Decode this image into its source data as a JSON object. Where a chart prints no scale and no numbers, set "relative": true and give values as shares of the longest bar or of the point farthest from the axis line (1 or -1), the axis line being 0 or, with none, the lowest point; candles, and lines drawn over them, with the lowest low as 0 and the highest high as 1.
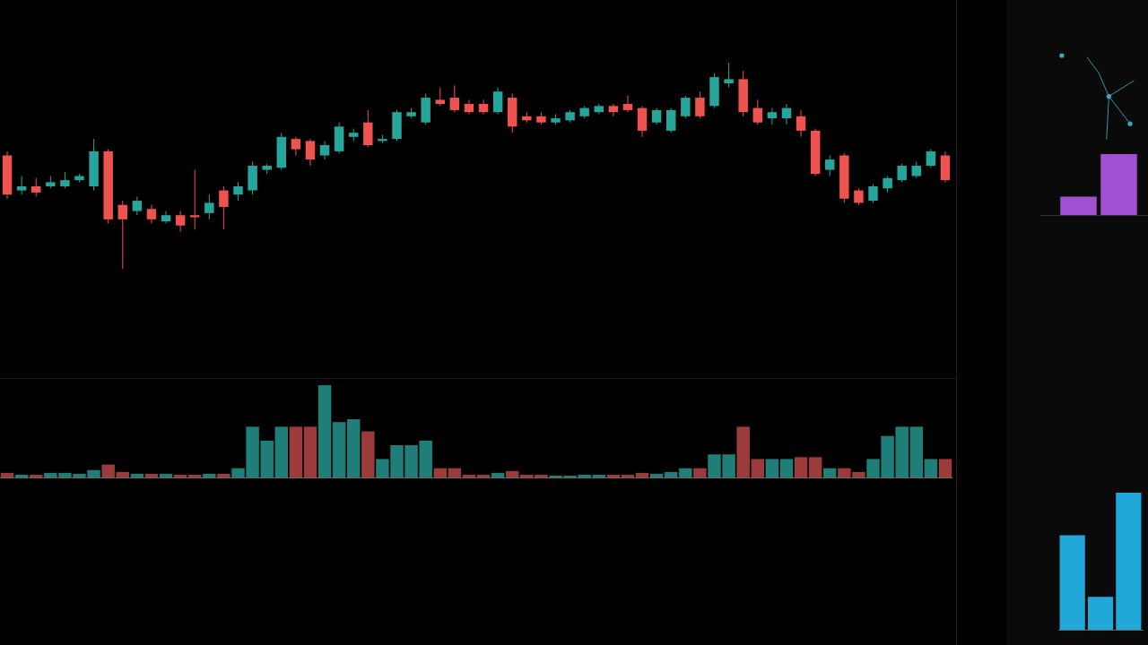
{
  "chart_data": [
    {
      "type": "candlestick",
      "relative": true,
      "categories": [
        null,
        null,
        null,
        null,
        null,
        null,
        null,
        null,
        null,
        null,
        null,
        null,
        null,
        null,
        null,
        null,
        null,
        null,
        null,
        null,
        null,
        null,
        null,
        null,
        null,
        null,
        null,
        null,
        null,
        null,
        null,
        null,
        null,
        null,
        null,
        null,
        null,
        null,
        null,
        null,
        null,
        null,
        null,
        null,
        null,
        null,
        null,
        null,
        null,
        null,
        null,
        null,
        null,
        null,
        null,
        null,
        null,
        null,
        null,
        null,
        null,
        null,
        null,
        null,
        null,
        null
      ],
      "ohlc": [
        [
          0.55,
          0.57,
          0.34,
          0.36
        ],
        [
          0.38,
          0.45,
          0.36,
          0.4
        ],
        [
          0.4,
          0.44,
          0.35,
          0.37
        ],
        [
          0.4,
          0.45,
          0.39,
          0.42
        ],
        [
          0.4,
          0.47,
          0.39,
          0.43
        ],
        [
          0.43,
          0.46,
          0.42,
          0.45
        ],
        [
          0.4,
          0.63,
          0.38,
          0.57
        ],
        [
          0.57,
          0.58,
          0.22,
          0.24
        ],
        [
          0.31,
          0.33,
          0,
          0.24
        ],
        [
          0.28,
          0.35,
          0.26,
          0.33
        ],
        [
          0.29,
          0.31,
          0.22,
          0.24
        ],
        [
          0.23,
          0.28,
          0.22,
          0.26
        ],
        [
          0.26,
          0.28,
          0.18,
          0.21
        ],
        [
          0.26,
          0.48,
          0.19,
          0.25
        ],
        [
          0.27,
          0.36,
          0.24,
          0.32
        ],
        [
          0.38,
          0.4,
          0.19,
          0.3
        ],
        [
          0.36,
          0.42,
          0.33,
          0.4
        ],
        [
          0.38,
          0.52,
          0.36,
          0.5
        ],
        [
          0.48,
          0.51,
          0.46,
          0.5
        ],
        [
          0.49,
          0.66,
          0.48,
          0.64
        ],
        [
          0.63,
          0.64,
          0.55,
          0.58
        ],
        [
          0.62,
          0.63,
          0.5,
          0.53
        ],
        [
          0.55,
          0.62,
          0.53,
          0.6
        ],
        [
          0.57,
          0.71,
          0.56,
          0.69
        ],
        [
          0.64,
          0.68,
          0.62,
          0.66
        ],
        [
          0.71,
          0.77,
          0.59,
          0.6
        ],
        [
          0.62,
          0.65,
          0.61,
          0.63
        ],
        [
          0.63,
          0.77,
          0.62,
          0.76
        ],
        [
          0.74,
          0.78,
          0.73,
          0.76
        ],
        [
          0.71,
          0.85,
          0.7,
          0.83
        ],
        [
          0.82,
          0.88,
          0.79,
          0.8
        ],
        [
          0.83,
          0.89,
          0.76,
          0.77
        ],
        [
          0.8,
          0.82,
          0.75,
          0.76
        ],
        [
          0.8,
          0.82,
          0.75,
          0.76
        ],
        [
          0.76,
          0.88,
          0.75,
          0.86
        ],
        [
          0.83,
          0.85,
          0.66,
          0.69
        ],
        [
          0.74,
          0.76,
          0.71,
          0.72
        ],
        [
          0.74,
          0.76,
          0.7,
          0.71
        ],
        [
          0.71,
          0.75,
          0.7,
          0.73
        ],
        [
          0.72,
          0.77,
          0.71,
          0.76
        ],
        [
          0.74,
          0.79,
          0.73,
          0.78
        ],
        [
          0.76,
          0.8,
          0.75,
          0.79
        ],
        [
          0.79,
          0.8,
          0.74,
          0.76
        ],
        [
          0.8,
          0.84,
          0.76,
          0.77
        ],
        [
          0.78,
          0.79,
          0.64,
          0.67
        ],
        [
          0.71,
          0.78,
          0.7,
          0.77
        ],
        [
          0.67,
          0.78,
          0.66,
          0.77
        ],
        [
          0.74,
          0.84,
          0.73,
          0.83
        ],
        [
          0.83,
          0.86,
          0.73,
          0.74
        ],
        [
          0.79,
          0.95,
          0.78,
          0.93
        ],
        [
          0.9,
          1,
          0.88,
          0.92
        ],
        [
          0.92,
          0.96,
          0.74,
          0.76
        ],
        [
          0.78,
          0.82,
          0.7,
          0.71
        ],
        [
          0.73,
          0.78,
          0.7,
          0.76
        ],
        [
          0.73,
          0.8,
          0.7,
          0.78
        ],
        [
          0.74,
          0.77,
          0.64,
          0.67
        ],
        [
          0.67,
          0.68,
          0.45,
          0.46
        ],
        [
          0.48,
          0.55,
          0.45,
          0.53
        ],
        [
          0.55,
          0.56,
          0.32,
          0.34
        ],
        [
          0.38,
          0.39,
          0.31,
          0.32
        ],
        [
          0.33,
          0.41,
          0.32,
          0.4
        ],
        [
          0.39,
          0.45,
          0.37,
          0.44
        ],
        [
          0.43,
          0.51,
          0.42,
          0.5
        ],
        [
          0.45,
          0.52,
          0.44,
          0.5
        ],
        [
          0.5,
          0.58,
          0.49,
          0.57
        ],
        [
          0.55,
          0.57,
          0.42,
          0.43
        ]
      ],
      "colors": [
        "#ef5350",
        "#26a69a",
        "#ef5350",
        "#26a69a",
        "#26a69a",
        "#26a69a",
        "#26a69a",
        "#ef5350",
        "#ef5350",
        "#26a69a",
        "#ef5350",
        "#26a69a",
        "#ef5350",
        "#ef5350",
        "#26a69a",
        "#ef5350",
        "#26a69a",
        "#26a69a",
        "#26a69a",
        "#26a69a",
        "#ef5350",
        "#ef5350",
        "#26a69a",
        "#26a69a",
        "#26a69a",
        "#ef5350",
        "#26a69a",
        "#26a69a",
        "#26a69a",
        "#26a69a",
        "#ef5350",
        "#ef5350",
        "#ef5350",
        "#ef5350",
        "#26a69a",
        "#ef5350",
        "#ef5350",
        "#ef5350",
        "#26a69a",
        "#26a69a",
        "#26a69a",
        "#26a69a",
        "#ef5350",
        "#ef5350",
        "#ef5350",
        "#26a69a",
        "#26a69a",
        "#26a69a",
        "#ef5350",
        "#26a69a",
        "#26a69a",
        "#ef5350",
        "#ef5350",
        "#26a69a",
        "#26a69a",
        "#ef5350",
        "#ef5350",
        "#26a69a",
        "#ef5350",
        "#ef5350",
        "#26a69a",
        "#26a69a",
        "#26a69a",
        "#26a69a",
        "#26a69a",
        "#ef5350"
      ]
    },
    {
      "type": "bar",
      "relative": true,
      "categories": [
        null,
        null,
        null,
        null,
        null,
        null,
        null,
        null,
        null,
        null,
        null,
        null,
        null,
        null,
        null,
        null,
        null,
        null,
        null,
        null,
        null,
        null,
        null,
        null,
        null,
        null,
        null,
        null,
        null,
        null,
        null,
        null,
        null,
        null,
        null,
        null,
        null,
        null,
        null,
        null,
        null,
        null,
        null,
        null,
        null,
        null,
        null,
        null,
        null,
        null,
        null,
        null,
        null,
        null,
        null,
        null,
        null,
        null,
        null,
        null,
        null,
        null,
        null,
        null,
        null,
        null
      ],
      "values": [
        0.05,
        0.03,
        0.03,
        0.05,
        0.05,
        0.04,
        0.08,
        0.14,
        0.06,
        0.04,
        0.04,
        0.04,
        0.03,
        0.03,
        0.04,
        0.04,
        0.1,
        0.55,
        0.4,
        0.55,
        0.55,
        0.55,
        1,
        0.6,
        0.63,
        0.5,
        0.2,
        0.35,
        0.35,
        0.4,
        0.1,
        0.1,
        0.03,
        0.03,
        0.05,
        0.07,
        0.03,
        0.03,
        0.02,
        0.02,
        0.03,
        0.03,
        0.03,
        0.03,
        0.05,
        0.04,
        0.06,
        0.1,
        0.1,
        0.25,
        0.25,
        0.55,
        0.2,
        0.2,
        0.2,
        0.22,
        0.22,
        0.1,
        0.1,
        0.06,
        0.2,
        0.45,
        0.55,
        0.55,
        0.2,
        0.2
      ],
      "colors": [
        "#9b3b3b",
        "#1f7f78",
        "#9b3b3b",
        "#1f7f78",
        "#1f7f78",
        "#1f7f78",
        "#1f7f78",
        "#9b3b3b",
        "#9b3b3b",
        "#1f7f78",
        "#9b3b3b",
        "#1f7f78",
        "#9b3b3b",
        "#9b3b3b",
        "#1f7f78",
        "#9b3b3b",
        "#1f7f78",
        "#1f7f78",
        "#1f7f78",
        "#1f7f78",
        "#9b3b3b",
        "#9b3b3b",
        "#1f7f78",
        "#1f7f78",
        "#1f7f78",
        "#9b3b3b",
        "#1f7f78",
        "#1f7f78",
        "#1f7f78",
        "#1f7f78",
        "#9b3b3b",
        "#9b3b3b",
        "#9b3b3b",
        "#9b3b3b",
        "#1f7f78",
        "#9b3b3b",
        "#9b3b3b",
        "#9b3b3b",
        "#1f7f78",
        "#1f7f78",
        "#1f7f78",
        "#1f7f78",
        "#9b3b3b",
        "#9b3b3b",
        "#9b3b3b",
        "#1f7f78",
        "#1f7f78",
        "#1f7f78",
        "#9b3b3b",
        "#1f7f78",
        "#1f7f78",
        "#9b3b3b",
        "#9b3b3b",
        "#1f7f78",
        "#1f7f78",
        "#9b3b3b",
        "#9b3b3b",
        "#1f7f78",
        "#9b3b3b",
        "#9b3b3b",
        "#1f7f78",
        "#1f7f78",
        "#1f7f78",
        "#1f7f78",
        "#1f7f78",
        "#9b3b3b"
      ]
    },
    {
      "type": "bar",
      "relative": true,
      "categories": [
        null,
        null
      ],
      "values": [
        0.3,
        1
      ],
      "colors": [
        "#a050d0",
        "#a050d0"
      ]
    },
    {
      "type": "bar",
      "relative": true,
      "categories": [
        null,
        null,
        null
      ],
      "values": [
        0.69,
        0.24,
        1
      ],
      "colors": [
        "#22a8d8",
        "#22a8d8",
        "#22a8d8"
      ]
    }
  ]
}
